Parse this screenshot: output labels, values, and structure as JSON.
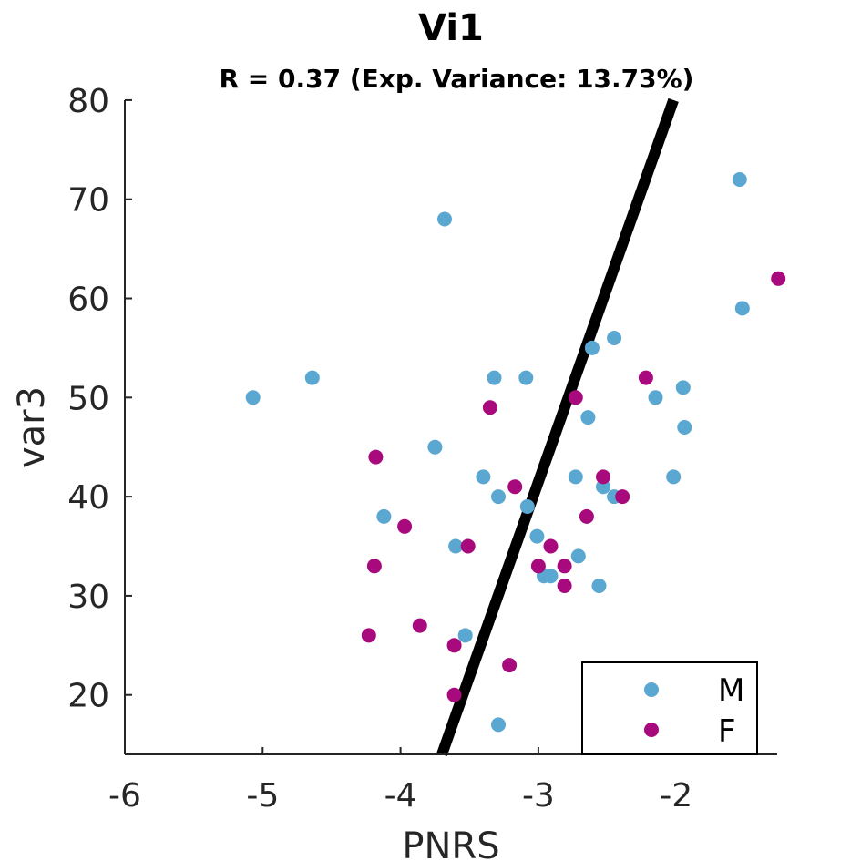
{
  "chart_data": {
    "type": "scatter",
    "title": "Vi1",
    "subtitle": "R = 0.37 (Exp. Variance: 13.73%)",
    "xlabel": "PNRS",
    "ylabel": "var3",
    "xlim": [
      -6,
      -1.25
    ],
    "ylim": [
      14,
      80
    ],
    "xticks": [
      -6,
      -5,
      -4,
      -3,
      -2
    ],
    "xtick_labels": [
      "-6",
      "-5",
      "-4",
      "-3",
      "-2"
    ],
    "yticks": [
      20,
      30,
      40,
      50,
      60,
      70,
      80
    ],
    "ytick_labels": [
      "20",
      "30",
      "40",
      "50",
      "60",
      "70",
      "80"
    ],
    "legend_position": "bottom-right",
    "fit_line": {
      "x": [
        -3.7,
        -2.02
      ],
      "y": [
        14,
        80
      ],
      "color": "#000000"
    },
    "series": [
      {
        "name": "M",
        "color": "#5aa7d1",
        "points": [
          [
            -5.07,
            50
          ],
          [
            -4.64,
            52
          ],
          [
            -3.68,
            68
          ],
          [
            -3.75,
            45
          ],
          [
            -4.12,
            38
          ],
          [
            -3.4,
            42
          ],
          [
            -3.32,
            52
          ],
          [
            -3.09,
            52
          ],
          [
            -3.29,
            40
          ],
          [
            -3.6,
            35
          ],
          [
            -3.08,
            39
          ],
          [
            -3.53,
            26
          ],
          [
            -3.29,
            17
          ],
          [
            -3.01,
            36
          ],
          [
            -2.96,
            32
          ],
          [
            -2.91,
            32
          ],
          [
            -2.71,
            34
          ],
          [
            -2.56,
            31
          ],
          [
            -2.73,
            42
          ],
          [
            -2.64,
            48
          ],
          [
            -2.61,
            55
          ],
          [
            -2.45,
            56
          ],
          [
            -2.53,
            41
          ],
          [
            -2.45,
            40
          ],
          [
            -2.15,
            50
          ],
          [
            -2.02,
            42
          ],
          [
            -1.95,
            51
          ],
          [
            -1.94,
            47
          ],
          [
            -1.54,
            72
          ],
          [
            -1.52,
            59
          ]
        ]
      },
      {
        "name": "F",
        "color": "#a8097d",
        "points": [
          [
            -4.23,
            26
          ],
          [
            -4.19,
            33
          ],
          [
            -4.18,
            44
          ],
          [
            -3.97,
            37
          ],
          [
            -3.86,
            27
          ],
          [
            -3.61,
            25
          ],
          [
            -3.61,
            20
          ],
          [
            -3.51,
            35
          ],
          [
            -3.21,
            23
          ],
          [
            -3.17,
            41
          ],
          [
            -3.35,
            49
          ],
          [
            -3.0,
            33
          ],
          [
            -2.91,
            35
          ],
          [
            -2.81,
            33
          ],
          [
            -2.81,
            31
          ],
          [
            -2.73,
            50
          ],
          [
            -2.65,
            38
          ],
          [
            -2.53,
            42
          ],
          [
            -2.39,
            40
          ],
          [
            -2.22,
            52
          ],
          [
            -1.26,
            62
          ]
        ]
      }
    ]
  }
}
